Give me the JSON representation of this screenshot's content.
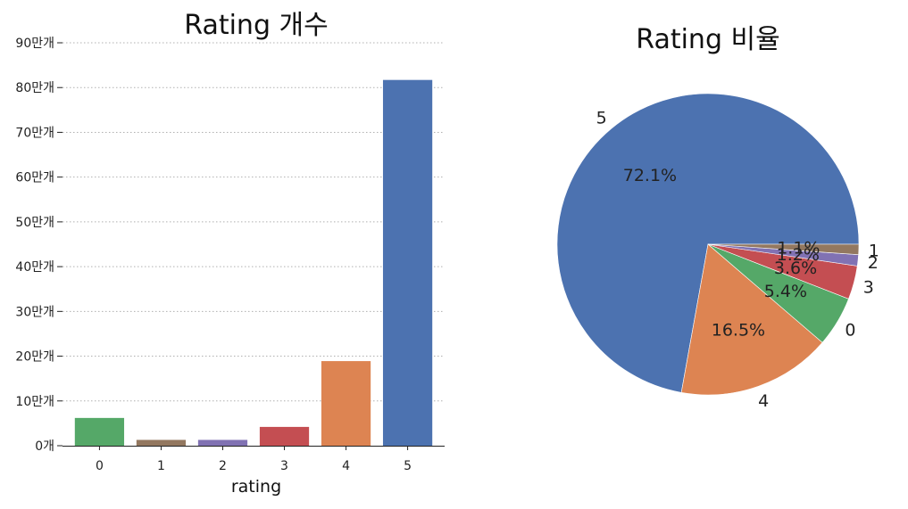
{
  "chart_data": [
    {
      "type": "bar",
      "title": "Rating 개수",
      "xlabel": "rating",
      "ylabel": "",
      "categories": [
        "0",
        "1",
        "2",
        "3",
        "4",
        "5"
      ],
      "values": [
        62000,
        13000,
        13000,
        42000,
        189000,
        817000
      ],
      "colors": [
        "#55a868",
        "#937860",
        "#8172b3",
        "#c44e52",
        "#dd8452",
        "#4c72b0"
      ],
      "ylim": [
        0,
        900000
      ],
      "yticks": [
        0,
        100000,
        200000,
        300000,
        400000,
        500000,
        600000,
        700000,
        800000,
        900000
      ],
      "ytick_labels": [
        "0개",
        "10만개",
        "20만개",
        "30만개",
        "40만개",
        "50만개",
        "60만개",
        "70만개",
        "80만개",
        "90만개"
      ],
      "grid": "y-dotted"
    },
    {
      "type": "pie",
      "title": "Rating 비율",
      "labels": [
        "5",
        "4",
        "0",
        "3",
        "2",
        "1"
      ],
      "values": [
        72.1,
        16.5,
        5.4,
        3.6,
        1.2,
        1.1
      ],
      "pct_labels": [
        "72.1%",
        "16.5%",
        "5.4%",
        "3.6%",
        "1.2%",
        "1.1%"
      ],
      "colors": [
        "#4c72b0",
        "#dd8452",
        "#55a868",
        "#c44e52",
        "#8172b3",
        "#937860"
      ],
      "start_angle_deg": 0,
      "direction": "counterclockwise"
    }
  ]
}
